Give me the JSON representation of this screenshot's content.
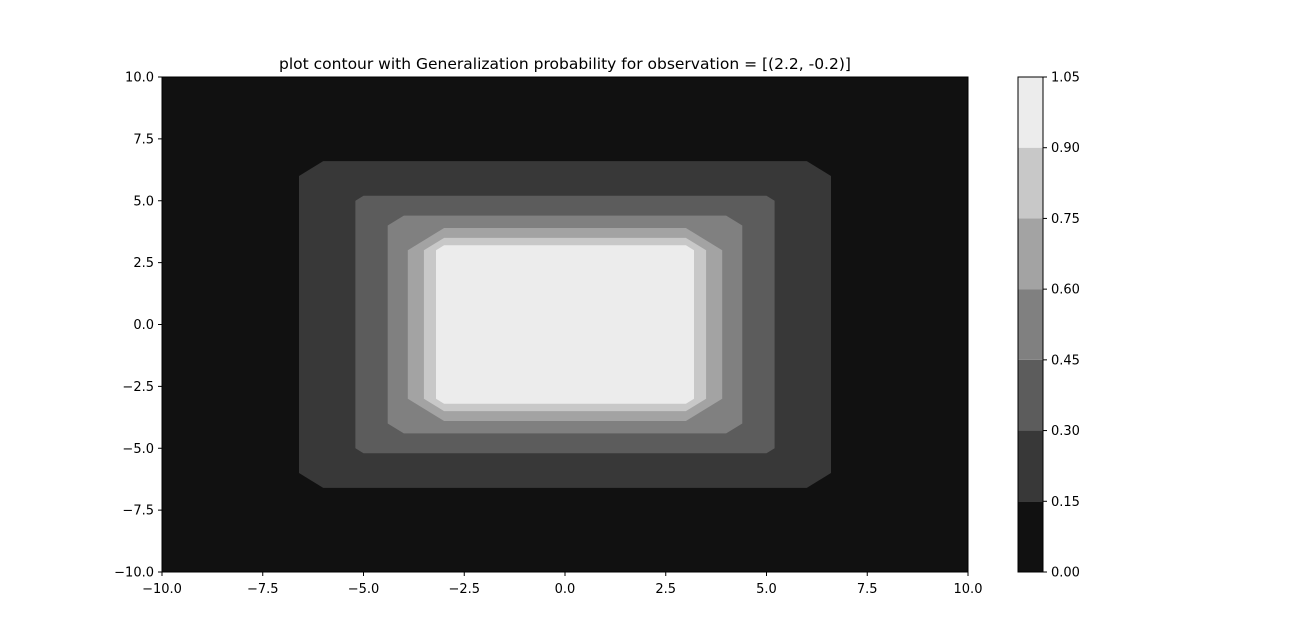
{
  "chart_data": {
    "type": "contour",
    "title": "plot contour with Generalization probability for observation = [(2.2, -0.2)]",
    "xlim": [
      -10,
      10
    ],
    "ylim": [
      -10,
      10
    ],
    "x_ticks": [
      "−10.0",
      "−7.5",
      "−5.0",
      "−2.5",
      "0.0",
      "2.5",
      "5.0",
      "7.5",
      "10.0"
    ],
    "x_tick_values": [
      -10,
      -7.5,
      -5,
      -2.5,
      0,
      2.5,
      5,
      7.5,
      10
    ],
    "y_ticks": [
      "10.0",
      "7.5",
      "5.0",
      "2.5",
      "0.0",
      "−2.5",
      "−5.0",
      "−7.5",
      "−10.0"
    ],
    "y_tick_values": [
      10,
      7.5,
      5,
      2.5,
      0,
      -2.5,
      -5,
      -7.5,
      -10
    ],
    "colorbar": {
      "levels": [
        0.0,
        0.15,
        0.3,
        0.45,
        0.6,
        0.75,
        0.9,
        1.05
      ],
      "tick_labels": [
        "0.00",
        "0.15",
        "0.30",
        "0.45",
        "0.60",
        "0.75",
        "0.90",
        "1.05"
      ],
      "colors": [
        "#111111",
        "#383838",
        "#5c5c5c",
        "#808080",
        "#a3a3a3",
        "#c8c8c8",
        "#ececec"
      ]
    },
    "regions": [
      {
        "level_index": 0,
        "x": [
          -10,
          10
        ],
        "y": [
          -10,
          10
        ],
        "chamfer": 0
      },
      {
        "level_index": 1,
        "x": [
          -6.6,
          6.6
        ],
        "y": [
          -6.6,
          6.6
        ],
        "chamfer": 0.6
      },
      {
        "level_index": 2,
        "x": [
          -5.2,
          5.2
        ],
        "y": [
          -5.2,
          5.2
        ],
        "chamfer": 0.2
      },
      {
        "level_index": 3,
        "x": [
          -4.4,
          4.4
        ],
        "y": [
          -4.4,
          4.4
        ],
        "chamfer": 0.4
      },
      {
        "level_index": 4,
        "x": [
          -3.9,
          3.9
        ],
        "y": [
          -3.9,
          3.9
        ],
        "chamfer": 0.9
      },
      {
        "level_index": 5,
        "x": [
          -3.5,
          3.5
        ],
        "y": [
          -3.5,
          3.5
        ],
        "chamfer": 0.5
      },
      {
        "level_index": 6,
        "x": [
          -3.2,
          3.2
        ],
        "y": [
          -3.2,
          3.2
        ],
        "chamfer": 0.2
      }
    ],
    "grid": false,
    "legend": "colorbar-right"
  }
}
